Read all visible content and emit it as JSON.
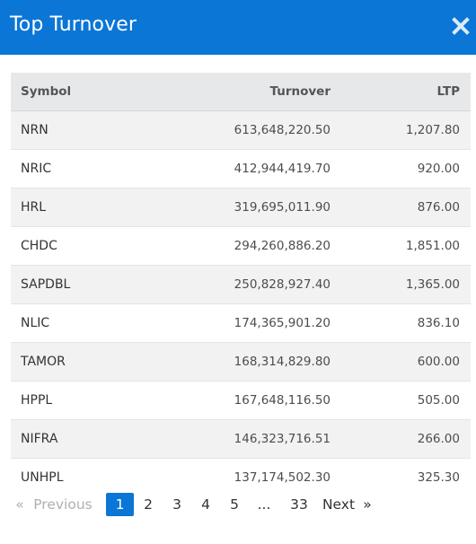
{
  "modal": {
    "title": "Top Turnover",
    "close_icon": "close-icon"
  },
  "table": {
    "columns": {
      "symbol": "Symbol",
      "turnover": "Turnover",
      "ltp": "LTP"
    },
    "rows": [
      {
        "symbol": "NRN",
        "turnover": "613,648,220.50",
        "ltp": "1,207.80"
      },
      {
        "symbol": "NRIC",
        "turnover": "412,944,419.70",
        "ltp": "920.00"
      },
      {
        "symbol": "HRL",
        "turnover": "319,695,011.90",
        "ltp": "876.00"
      },
      {
        "symbol": "CHDC",
        "turnover": "294,260,886.20",
        "ltp": "1,851.00"
      },
      {
        "symbol": "SAPDBL",
        "turnover": "250,828,927.40",
        "ltp": "1,365.00"
      },
      {
        "symbol": "NLIC",
        "turnover": "174,365,901.20",
        "ltp": "836.10"
      },
      {
        "symbol": "TAMOR",
        "turnover": "168,314,829.80",
        "ltp": "600.00"
      },
      {
        "symbol": "HPPL",
        "turnover": "167,648,116.50",
        "ltp": "505.00"
      },
      {
        "symbol": "NIFRA",
        "turnover": "146,323,716.51",
        "ltp": "266.00"
      },
      {
        "symbol": "UNHPL",
        "turnover": "137,174,502.30",
        "ltp": "325.30"
      }
    ]
  },
  "pagination": {
    "prev_arrow": "«",
    "prev_label": "Previous",
    "pages": [
      "1",
      "2",
      "3",
      "4",
      "5"
    ],
    "active_page": "1",
    "ellipsis": "...",
    "last_page": "33",
    "next_label": "Next",
    "next_arrow": "»"
  },
  "colors": {
    "header_bg": "#0b76d6",
    "active_page_bg": "#0b76d6",
    "table_header_bg": "#e6e8ea",
    "row_alt_bg": "#f2f2f2"
  }
}
